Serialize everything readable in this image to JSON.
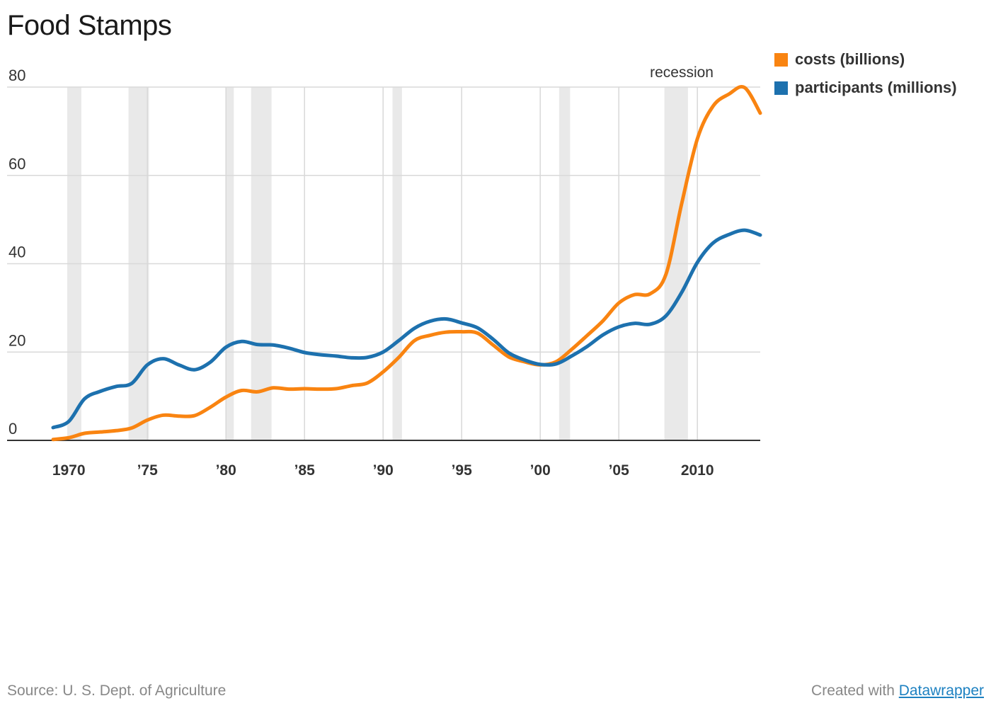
{
  "title": "Food Stamps",
  "source": "Source: U. S. Dept. of Agriculture",
  "credit": {
    "prefix": "Created with ",
    "link": "Datawrapper"
  },
  "chart_data": {
    "type": "line",
    "title": "Food Stamps",
    "xlabel": "",
    "ylabel": "",
    "x_range": [
      1969,
      2014
    ],
    "ylim": [
      0,
      80
    ],
    "y_ticks": [
      0,
      20,
      40,
      60,
      80
    ],
    "y_tick_labels": [
      "0",
      "20",
      "40",
      "60",
      "80"
    ],
    "x_ticks": [
      1970,
      1975,
      1980,
      1985,
      1990,
      1995,
      2000,
      2005,
      2010
    ],
    "x_tick_labels": [
      "1970",
      "’75",
      "’80",
      "’85",
      "’90",
      "’95",
      "’00",
      "’05",
      "2010"
    ],
    "grid": true,
    "legend_position": "top-right",
    "recession_label": "recession",
    "recession_periods": [
      [
        1969.9,
        1970.8
      ],
      [
        1973.8,
        1975.1
      ],
      [
        1980.0,
        1980.5
      ],
      [
        1981.6,
        1982.9
      ],
      [
        1990.6,
        1991.2
      ],
      [
        2001.2,
        2001.9
      ],
      [
        2007.9,
        2009.4
      ]
    ],
    "colors": {
      "recession": "#e9e9e9",
      "grid": "#d9d9d9",
      "axis": "#333333"
    },
    "series": [
      {
        "name": "costs (billions)",
        "color": "#f98411",
        "x": [
          1969,
          1970,
          1971,
          1972,
          1973,
          1974,
          1975,
          1976,
          1977,
          1978,
          1979,
          1980,
          1981,
          1982,
          1983,
          1984,
          1985,
          1986,
          1987,
          1988,
          1989,
          1990,
          1991,
          1992,
          1993,
          1994,
          1995,
          1996,
          1997,
          1998,
          1999,
          2000,
          2001,
          2002,
          2003,
          2004,
          2005,
          2006,
          2007,
          2008,
          2009,
          2010,
          2011,
          2012,
          2013,
          2014
        ],
        "values": [
          0.2,
          0.6,
          1.6,
          1.9,
          2.2,
          2.8,
          4.6,
          5.7,
          5.5,
          5.6,
          7.5,
          9.8,
          11.3,
          11.0,
          11.9,
          11.6,
          11.7,
          11.6,
          11.7,
          12.4,
          13.0,
          15.5,
          18.8,
          22.6,
          23.8,
          24.5,
          24.6,
          24.3,
          21.6,
          18.9,
          17.8,
          17.1,
          17.8,
          20.6,
          23.8,
          27.1,
          31.1,
          33.0,
          33.2,
          37.6,
          53.6,
          68.3,
          75.7,
          78.4,
          79.9,
          74.1
        ]
      },
      {
        "name": "participants (millions)",
        "color": "#1d71ae",
        "x": [
          1969,
          1970,
          1971,
          1972,
          1973,
          1974,
          1975,
          1976,
          1977,
          1978,
          1979,
          1980,
          1981,
          1982,
          1983,
          1984,
          1985,
          1986,
          1987,
          1988,
          1989,
          1990,
          1991,
          1992,
          1993,
          1994,
          1995,
          1996,
          1997,
          1998,
          1999,
          2000,
          2001,
          2002,
          2003,
          2004,
          2005,
          2006,
          2007,
          2008,
          2009,
          2010,
          2011,
          2012,
          2013,
          2014
        ],
        "values": [
          2.9,
          4.3,
          9.4,
          11.1,
          12.2,
          12.9,
          17.1,
          18.5,
          17.1,
          16.0,
          17.7,
          21.1,
          22.4,
          21.7,
          21.6,
          20.9,
          19.9,
          19.4,
          19.1,
          18.7,
          18.8,
          20.0,
          22.6,
          25.4,
          27.0,
          27.5,
          26.6,
          25.5,
          22.9,
          19.8,
          18.2,
          17.2,
          17.3,
          19.1,
          21.3,
          23.9,
          25.7,
          26.5,
          26.3,
          28.2,
          33.5,
          40.3,
          44.7,
          46.6,
          47.6,
          46.5
        ]
      }
    ]
  }
}
